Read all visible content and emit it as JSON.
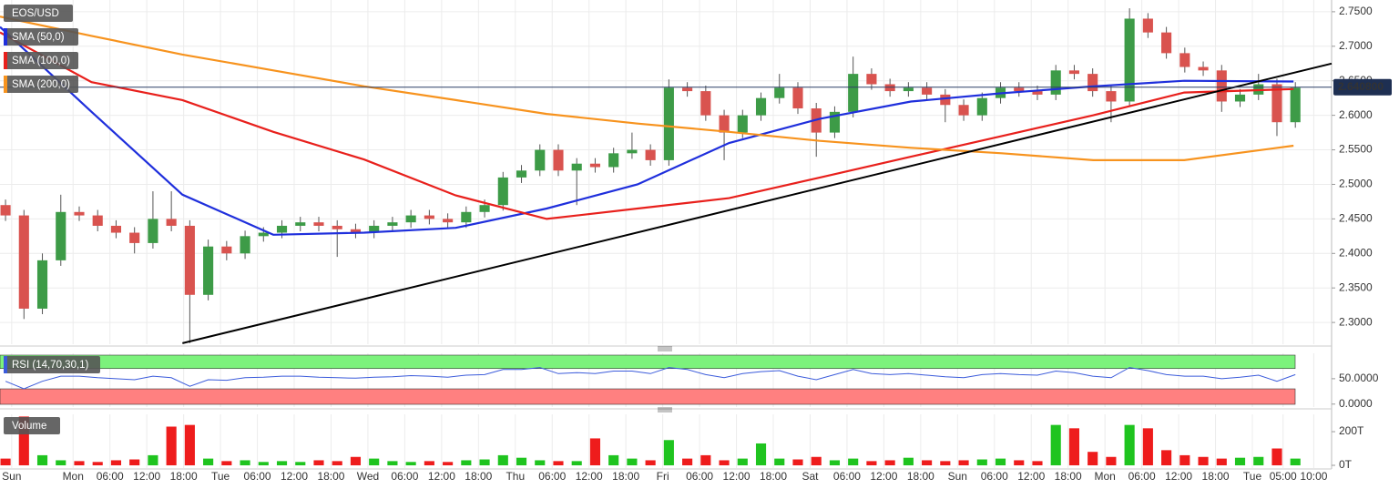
{
  "chart_data": {
    "type": "candlestick",
    "title": "EOS/USD",
    "x": [
      -11,
      -8,
      -5,
      -2,
      1,
      4,
      7,
      10,
      13,
      16,
      19,
      22,
      25,
      28,
      31,
      34,
      37,
      40,
      43,
      46,
      49,
      52,
      55,
      58,
      61,
      64,
      67,
      70,
      73,
      76,
      79,
      82,
      85,
      88,
      91,
      94,
      97,
      100,
      103,
      106,
      109,
      112,
      115,
      118,
      121,
      124,
      127,
      130,
      133,
      136,
      139,
      142,
      145,
      148,
      151,
      154,
      157,
      160,
      163,
      166,
      169,
      172,
      175,
      178,
      181,
      184,
      187,
      190,
      193,
      196,
      199
    ],
    "open": [
      2.47,
      2.455,
      2.32,
      2.39,
      2.46,
      2.455,
      2.44,
      2.43,
      2.415,
      2.45,
      2.44,
      2.34,
      2.41,
      2.4,
      2.425,
      2.43,
      2.44,
      2.445,
      2.44,
      2.435,
      2.43,
      2.44,
      2.445,
      2.455,
      2.45,
      2.445,
      2.46,
      2.47,
      2.51,
      2.52,
      2.55,
      2.52,
      2.53,
      2.525,
      2.545,
      2.55,
      2.535,
      2.64,
      2.635,
      2.6,
      2.575,
      2.6,
      2.625,
      2.64,
      2.61,
      2.575,
      2.605,
      2.66,
      2.645,
      2.635,
      2.64,
      2.63,
      2.615,
      2.6,
      2.625,
      2.64,
      2.635,
      2.63,
      2.665,
      2.66,
      2.635,
      2.62,
      2.74,
      2.72,
      2.69,
      2.67,
      2.665,
      2.62,
      2.63,
      2.645,
      2.59
    ],
    "high": [
      2.478,
      2.463,
      2.4,
      2.485,
      2.468,
      2.463,
      2.448,
      2.438,
      2.49,
      2.49,
      2.448,
      2.42,
      2.418,
      2.433,
      2.438,
      2.448,
      2.453,
      2.453,
      2.448,
      2.443,
      2.448,
      2.453,
      2.463,
      2.463,
      2.458,
      2.468,
      2.478,
      2.518,
      2.528,
      2.558,
      2.558,
      2.538,
      2.538,
      2.553,
      2.575,
      2.558,
      2.652,
      2.648,
      2.643,
      2.608,
      2.608,
      2.633,
      2.66,
      2.648,
      2.618,
      2.613,
      2.685,
      2.668,
      2.653,
      2.648,
      2.648,
      2.638,
      2.623,
      2.633,
      2.648,
      2.648,
      2.643,
      2.673,
      2.673,
      2.668,
      2.643,
      2.755,
      2.748,
      2.728,
      2.698,
      2.678,
      2.673,
      2.638,
      2.66,
      2.653,
      2.648
    ],
    "low": [
      2.447,
      2.305,
      2.312,
      2.382,
      2.447,
      2.432,
      2.422,
      2.4,
      2.407,
      2.432,
      2.27,
      2.332,
      2.39,
      2.392,
      2.417,
      2.422,
      2.432,
      2.432,
      2.395,
      2.422,
      2.422,
      2.432,
      2.437,
      2.442,
      2.437,
      2.437,
      2.452,
      2.462,
      2.502,
      2.512,
      2.512,
      2.47,
      2.517,
      2.517,
      2.537,
      2.527,
      2.527,
      2.627,
      2.592,
      2.535,
      2.567,
      2.592,
      2.617,
      2.602,
      2.54,
      2.567,
      2.597,
      2.637,
      2.627,
      2.627,
      2.622,
      2.59,
      2.592,
      2.592,
      2.617,
      2.627,
      2.622,
      2.622,
      2.652,
      2.627,
      2.59,
      2.612,
      2.712,
      2.682,
      2.662,
      2.657,
      2.605,
      2.612,
      2.622,
      2.57,
      2.582
    ],
    "close": [
      2.455,
      2.32,
      2.39,
      2.46,
      2.455,
      2.44,
      2.43,
      2.415,
      2.45,
      2.44,
      2.34,
      2.41,
      2.4,
      2.425,
      2.43,
      2.44,
      2.445,
      2.44,
      2.435,
      2.43,
      2.44,
      2.445,
      2.455,
      2.45,
      2.445,
      2.46,
      2.47,
      2.51,
      2.52,
      2.55,
      2.52,
      2.53,
      2.525,
      2.545,
      2.55,
      2.535,
      2.64,
      2.635,
      2.6,
      2.575,
      2.6,
      2.625,
      2.64,
      2.61,
      2.575,
      2.605,
      2.66,
      2.645,
      2.635,
      2.64,
      2.63,
      2.615,
      2.6,
      2.625,
      2.64,
      2.635,
      2.63,
      2.665,
      2.66,
      2.635,
      2.62,
      2.74,
      2.72,
      2.69,
      2.67,
      2.665,
      2.62,
      2.63,
      2.645,
      2.59,
      2.64
    ],
    "up_color": "#3d9b47",
    "down_color": "#d9534f",
    "xlim": [
      -11.9,
      204.9
    ],
    "xticks": [
      {
        "value": -10,
        "label": "Sun"
      },
      {
        "value": 0,
        "label": "Mon"
      },
      {
        "value": 6,
        "label": "06:00"
      },
      {
        "value": 12,
        "label": "12:00"
      },
      {
        "value": 18,
        "label": "18:00"
      },
      {
        "value": 24,
        "label": "Tue"
      },
      {
        "value": 30,
        "label": "06:00"
      },
      {
        "value": 36,
        "label": "12:00"
      },
      {
        "value": 42,
        "label": "18:00"
      },
      {
        "value": 48,
        "label": "Wed"
      },
      {
        "value": 54,
        "label": "06:00"
      },
      {
        "value": 60,
        "label": "12:00"
      },
      {
        "value": 66,
        "label": "18:00"
      },
      {
        "value": 72,
        "label": "Thu"
      },
      {
        "value": 78,
        "label": "06:00"
      },
      {
        "value": 84,
        "label": "12:00"
      },
      {
        "value": 90,
        "label": "18:00"
      },
      {
        "value": 96,
        "label": "Fri"
      },
      {
        "value": 102,
        "label": "06:00"
      },
      {
        "value": 108,
        "label": "12:00"
      },
      {
        "value": 114,
        "label": "18:00"
      },
      {
        "value": 120,
        "label": "Sat"
      },
      {
        "value": 126,
        "label": "06:00"
      },
      {
        "value": 132,
        "label": "12:00"
      },
      {
        "value": 138,
        "label": "18:00"
      },
      {
        "value": 144,
        "label": "Sun"
      },
      {
        "value": 150,
        "label": "06:00"
      },
      {
        "value": 156,
        "label": "12:00"
      },
      {
        "value": 162,
        "label": "18:00"
      },
      {
        "value": 168,
        "label": "Mon"
      },
      {
        "value": 174,
        "label": "06:00"
      },
      {
        "value": 180,
        "label": "12:00"
      },
      {
        "value": 186,
        "label": "18:00"
      },
      {
        "value": 192,
        "label": "Tue"
      },
      {
        "value": 197,
        "label": "05:00"
      },
      {
        "value": 202,
        "label": "10:00"
      }
    ],
    "ylim": [
      2.2685,
      2.767
    ],
    "yticks": [
      {
        "value": 2.3,
        "label": "2.3000"
      },
      {
        "value": 2.35,
        "label": "2.3500"
      },
      {
        "value": 2.4,
        "label": "2.4000"
      },
      {
        "value": 2.45,
        "label": "2.4500"
      },
      {
        "value": 2.5,
        "label": "2.5000"
      },
      {
        "value": 2.55,
        "label": "2.5500"
      },
      {
        "value": 2.6,
        "label": "2.6000"
      },
      {
        "value": 2.65,
        "label": "2.6500"
      },
      {
        "value": 2.7,
        "label": "2.7000"
      },
      {
        "value": 2.75,
        "label": "2.7500"
      }
    ],
    "grid": true,
    "last_price": 2.6408,
    "last_price_label": "2.640800",
    "series": [
      {
        "name": "SMA (50,0)",
        "color": "#1f2fdc",
        "x": [
          -11.9,
          3.0,
          17.8,
          32.6,
          47.4,
          62.3,
          77.1,
          91.9,
          106.8,
          121.6,
          136.4,
          151.2,
          166.1,
          180.9,
          198.7
        ],
        "values": [
          2.728,
          2.605,
          2.485,
          2.427,
          2.43,
          2.437,
          2.465,
          2.5,
          2.56,
          2.595,
          2.62,
          2.632,
          2.642,
          2.65,
          2.649
        ]
      },
      {
        "name": "SMA (100,0)",
        "color": "#e8201c",
        "x": [
          -11.9,
          3.0,
          17.8,
          32.6,
          47.4,
          62.3,
          77.1,
          91.9,
          106.8,
          121.6,
          136.4,
          151.2,
          166.1,
          180.9,
          198.7
        ],
        "values": [
          2.72,
          2.648,
          2.622,
          2.576,
          2.536,
          2.484,
          2.45,
          2.465,
          2.48,
          2.51,
          2.54,
          2.57,
          2.6,
          2.633,
          2.638
        ]
      },
      {
        "name": "SMA (200,0)",
        "color": "#f7931e",
        "x": [
          -11.9,
          3.0,
          17.8,
          32.6,
          47.4,
          62.3,
          77.1,
          91.9,
          106.8,
          121.6,
          136.4,
          151.2,
          166.1,
          180.9,
          198.7
        ],
        "values": [
          2.743,
          2.715,
          2.688,
          2.665,
          2.642,
          2.622,
          2.602,
          2.588,
          2.576,
          2.563,
          2.553,
          2.545,
          2.535,
          2.535,
          2.556
        ]
      }
    ],
    "trendline": {
      "color": "#000000",
      "x": [
        17.8,
        204.9
      ],
      "values": [
        2.27,
        2.675
      ]
    },
    "rsi": {
      "type": "line",
      "name": "RSI (14,70,30,1)",
      "color": "#3b5bdb",
      "values": [
        45,
        30,
        45,
        55,
        55,
        52,
        50,
        48,
        55,
        52,
        35,
        48,
        47,
        52,
        53,
        55,
        55,
        53,
        52,
        51,
        53,
        54,
        56,
        55,
        53,
        57,
        58,
        68,
        68,
        72,
        60,
        62,
        60,
        65,
        65,
        60,
        72,
        68,
        58,
        52,
        60,
        64,
        66,
        55,
        48,
        58,
        68,
        60,
        58,
        60,
        57,
        54,
        52,
        58,
        60,
        58,
        57,
        65,
        62,
        55,
        52,
        72,
        66,
        58,
        55,
        55,
        50,
        53,
        57,
        45,
        58
      ],
      "ylim": [
        -5.8,
        100
      ],
      "yticks": [
        {
          "value": 0,
          "label": "0.0000"
        },
        {
          "value": 50,
          "label": "50.0000"
        }
      ],
      "upper": 70,
      "lower": 30,
      "upper_color": "#7cf27c",
      "lower_color": "#ff8080"
    },
    "volume": {
      "type": "bar",
      "name": "Volume",
      "values": [
        40,
        290,
        60,
        30,
        25,
        20,
        30,
        35,
        60,
        230,
        240,
        40,
        25,
        30,
        20,
        25,
        20,
        30,
        25,
        50,
        40,
        25,
        20,
        25,
        20,
        30,
        35,
        60,
        45,
        30,
        25,
        25,
        160,
        60,
        40,
        30,
        150,
        40,
        60,
        30,
        40,
        130,
        40,
        35,
        50,
        30,
        40,
        25,
        30,
        45,
        30,
        25,
        30,
        35,
        40,
        30,
        25,
        240,
        220,
        80,
        50,
        240,
        220,
        90,
        60,
        50,
        40,
        45,
        50,
        100,
        40
      ],
      "ylim": [
        0,
        303
      ],
      "yticks": [
        {
          "value": 0,
          "label": "0T"
        },
        {
          "value": 200,
          "label": "200T"
        }
      ],
      "up_color": "#1fc41f",
      "down_color": "#ee1c1c"
    }
  }
}
